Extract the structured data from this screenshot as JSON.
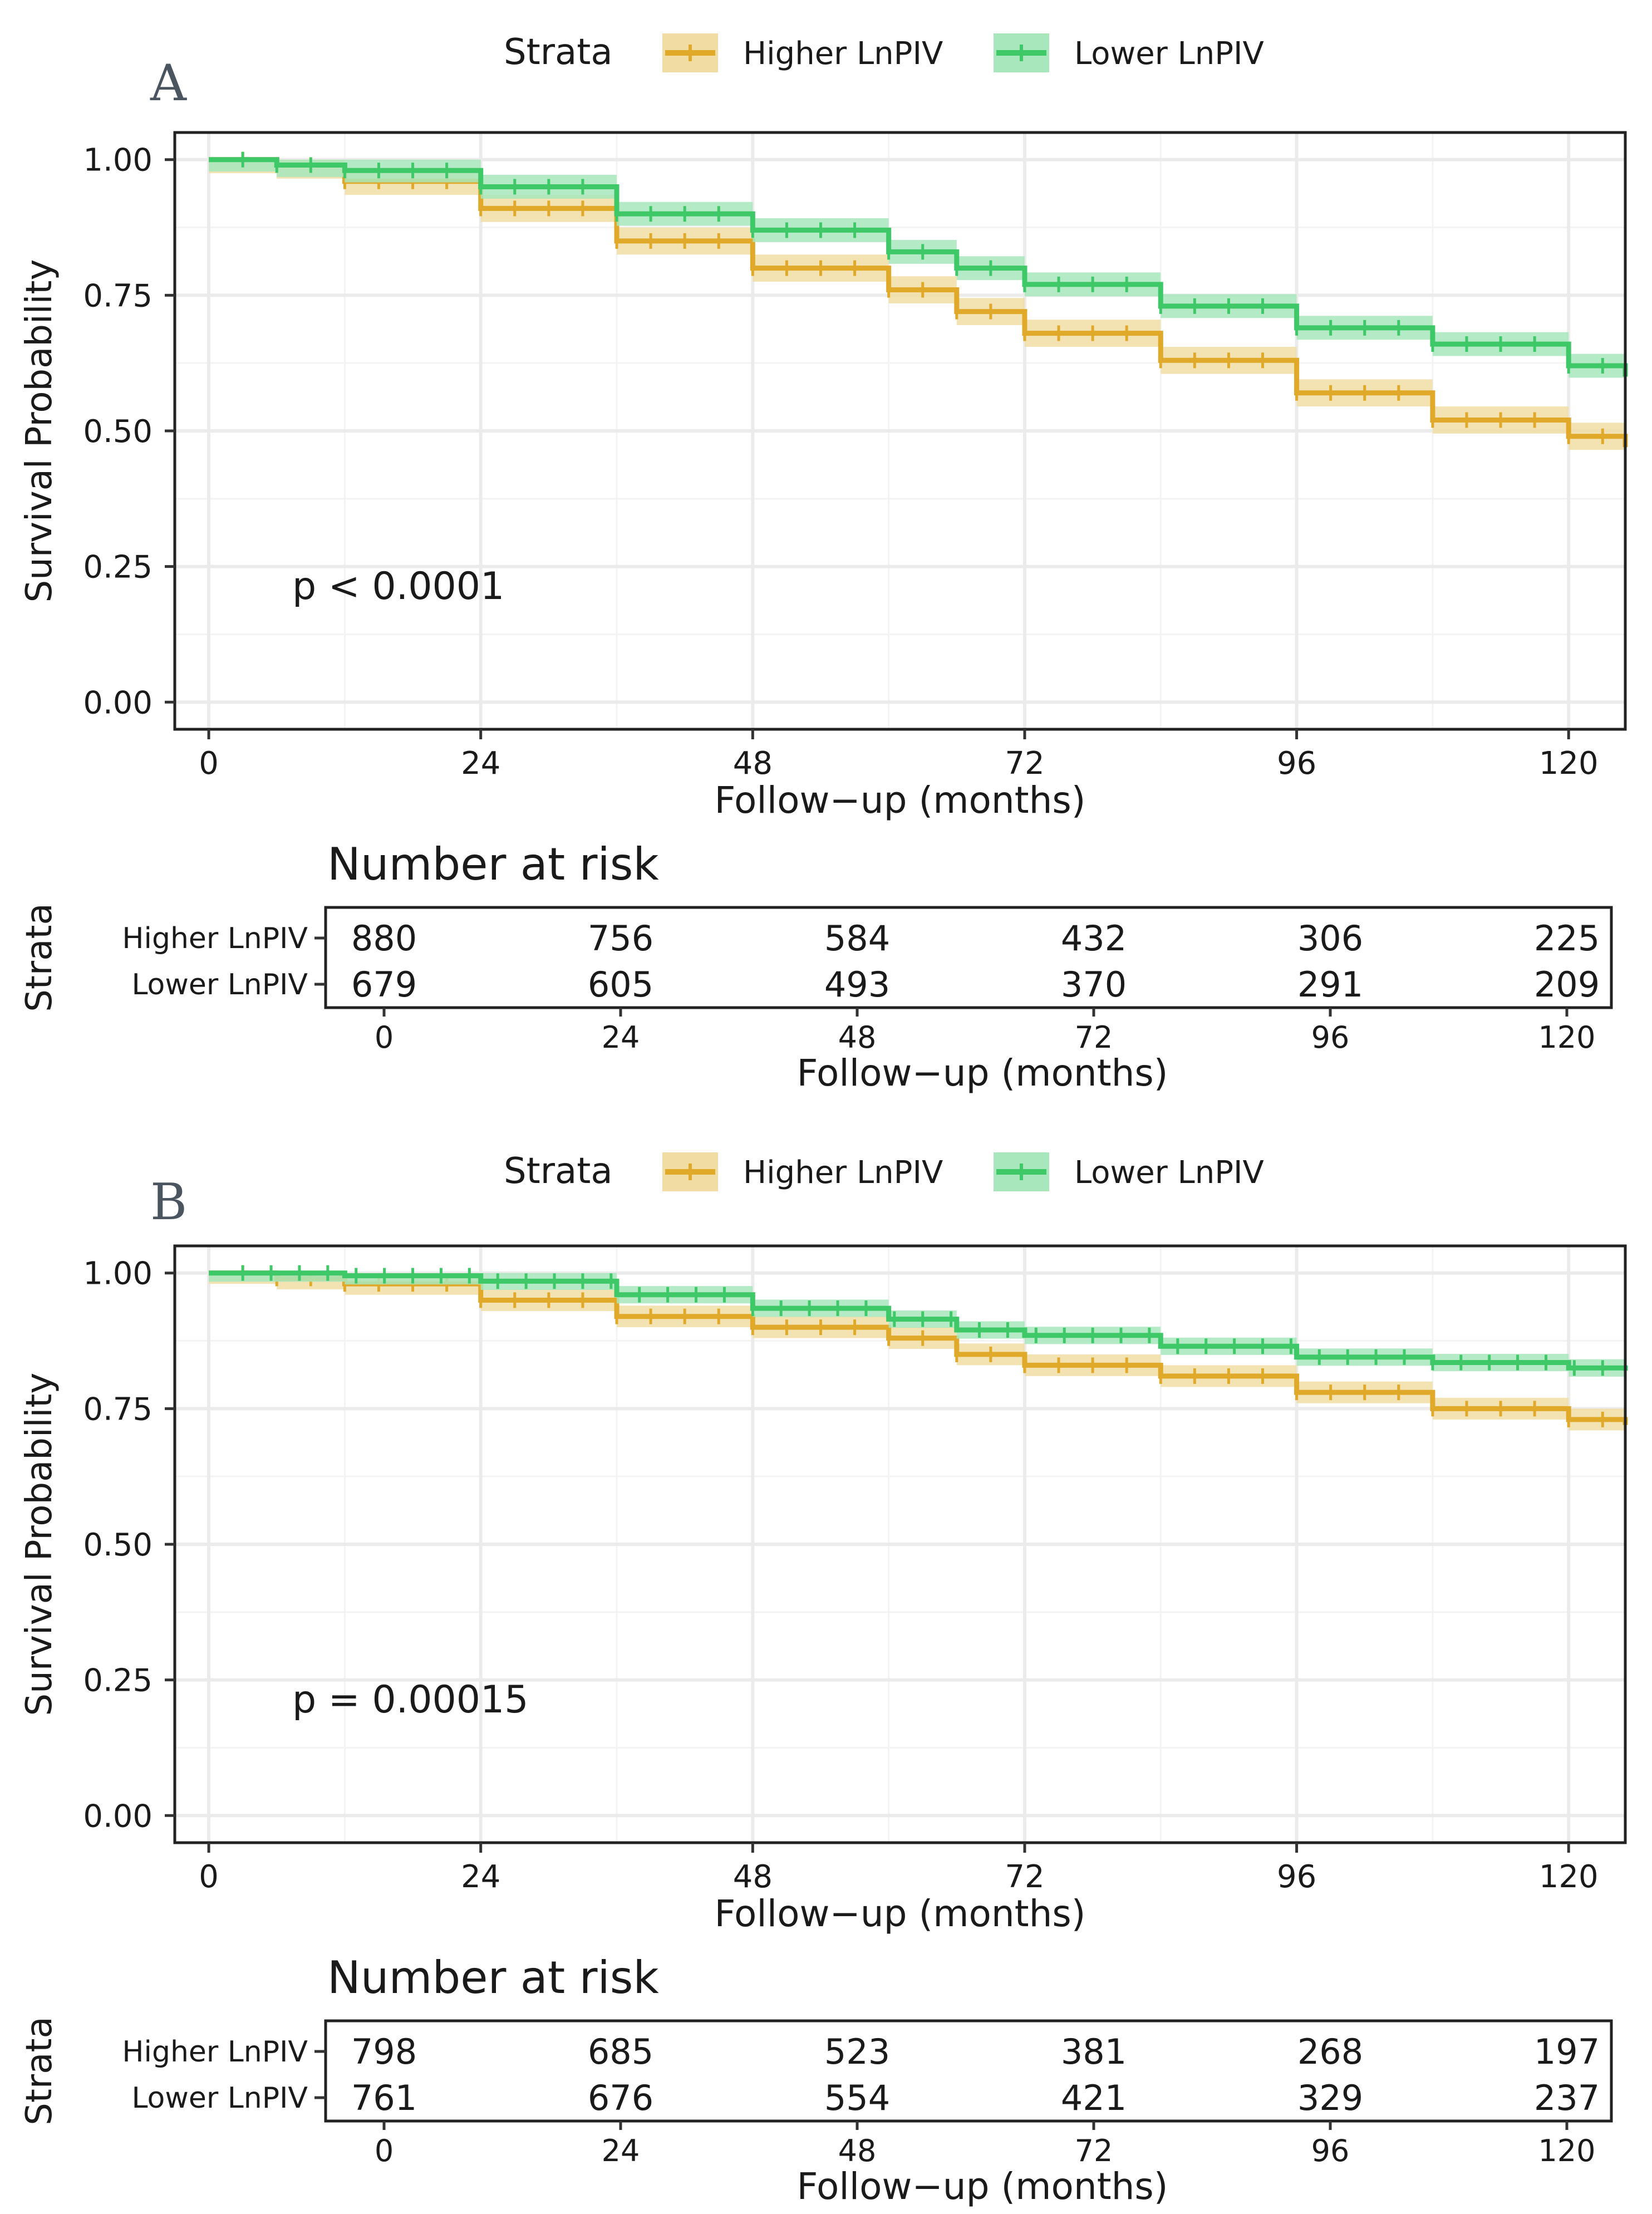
{
  "colors": {
    "higher": "#e0a92a",
    "lower": "#3ec868",
    "higher_band": "#f1dda4",
    "lower_band": "#a8e6bc",
    "grid": "#ebebeb"
  },
  "chart_data": [
    {
      "type": "line",
      "panel_label": "A",
      "legend_title": "Strata",
      "legend": [
        "Higher LnPIV",
        "Lower LnPIV"
      ],
      "xlabel": "Follow−up (months)",
      "ylabel": "Survival Probability",
      "xlim": [
        -3,
        125
      ],
      "ylim": [
        -0.05,
        1.05
      ],
      "xticks": [
        0,
        24,
        48,
        72,
        96,
        120
      ],
      "yticks": [
        0.0,
        0.25,
        0.5,
        0.75,
        1.0
      ],
      "ytick_labels": [
        "0.00",
        "0.25",
        "0.50",
        "0.75",
        "1.00"
      ],
      "annotation": "p < 0.0001",
      "series": [
        {
          "name": "Higher LnPIV",
          "x": [
            0,
            6,
            12,
            24,
            36,
            48,
            60,
            66,
            72,
            84,
            96,
            108,
            120,
            125
          ],
          "y": [
            1.0,
            0.99,
            0.96,
            0.91,
            0.85,
            0.8,
            0.76,
            0.72,
            0.68,
            0.63,
            0.57,
            0.52,
            0.49,
            0.47
          ],
          "band": 0.025
        },
        {
          "name": "Lower LnPIV",
          "x": [
            0,
            6,
            12,
            24,
            36,
            48,
            60,
            66,
            72,
            84,
            96,
            108,
            120,
            125
          ],
          "y": [
            1.0,
            0.99,
            0.98,
            0.95,
            0.9,
            0.87,
            0.83,
            0.8,
            0.77,
            0.73,
            0.69,
            0.66,
            0.62,
            0.6
          ],
          "band": 0.022
        }
      ],
      "risk_table": {
        "title": "Number at risk",
        "ylabel": "Strata",
        "xlabel": "Follow−up (months)",
        "times": [
          0,
          24,
          48,
          72,
          96,
          120
        ],
        "rows": [
          {
            "name": "Higher LnPIV",
            "values": [
              880,
              756,
              584,
              432,
              306,
              225
            ]
          },
          {
            "name": "Lower LnPIV",
            "values": [
              679,
              605,
              493,
              370,
              291,
              209
            ]
          }
        ]
      }
    },
    {
      "type": "line",
      "panel_label": "B",
      "legend_title": "Strata",
      "legend": [
        "Higher LnPIV",
        "Lower LnPIV"
      ],
      "xlabel": "Follow−up (months)",
      "ylabel": "Survival Probability",
      "xlim": [
        -3,
        125
      ],
      "ylim": [
        -0.05,
        1.05
      ],
      "xticks": [
        0,
        24,
        48,
        72,
        96,
        120
      ],
      "yticks": [
        0.0,
        0.25,
        0.5,
        0.75,
        1.0
      ],
      "ytick_labels": [
        "0.00",
        "0.25",
        "0.50",
        "0.75",
        "1.00"
      ],
      "annotation": "p = 0.00015",
      "series": [
        {
          "name": "Higher LnPIV",
          "x": [
            0,
            6,
            12,
            24,
            36,
            48,
            60,
            66,
            72,
            84,
            96,
            108,
            120,
            125
          ],
          "y": [
            1.0,
            0.99,
            0.98,
            0.95,
            0.92,
            0.9,
            0.88,
            0.85,
            0.83,
            0.81,
            0.78,
            0.75,
            0.73,
            0.72
          ],
          "band": 0.02
        },
        {
          "name": "Lower LnPIV",
          "x": [
            0,
            6,
            12,
            24,
            36,
            48,
            60,
            66,
            72,
            84,
            96,
            108,
            120,
            125
          ],
          "y": [
            1.0,
            1.0,
            0.995,
            0.985,
            0.96,
            0.935,
            0.915,
            0.895,
            0.885,
            0.865,
            0.845,
            0.835,
            0.825,
            0.82
          ],
          "band": 0.016
        }
      ],
      "risk_table": {
        "title": "Number at risk",
        "ylabel": "Strata",
        "xlabel": "Follow−up (months)",
        "times": [
          0,
          24,
          48,
          72,
          96,
          120
        ],
        "rows": [
          {
            "name": "Higher LnPIV",
            "values": [
              798,
              685,
              523,
              381,
              268,
              197
            ]
          },
          {
            "name": "Lower LnPIV",
            "values": [
              761,
              676,
              554,
              421,
              329,
              237
            ]
          }
        ]
      }
    }
  ]
}
